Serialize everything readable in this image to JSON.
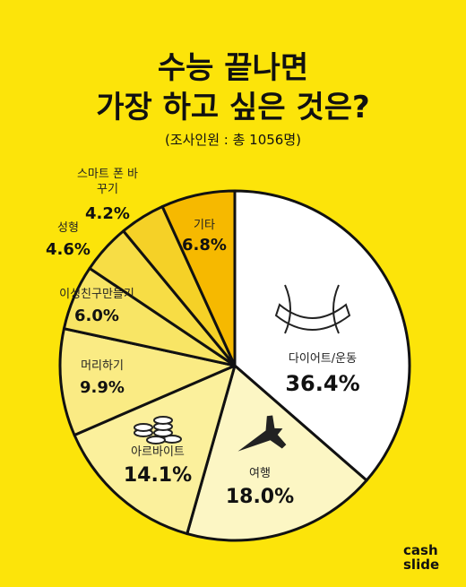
{
  "chart_data": {
    "type": "pie",
    "title": [
      "수능 끝나면",
      "가장 하고 싶은 것은?"
    ],
    "subtitle": "(조사인원 : 총 1056명)",
    "categories": [
      "다이어트/운동",
      "여행",
      "아르바이트",
      "머리하기",
      "이성친구만들기",
      "성형",
      "스마트 폰 바꾸기",
      "기타"
    ],
    "values": [
      36.4,
      18.0,
      14.1,
      9.9,
      6.0,
      4.6,
      4.2,
      6.8
    ],
    "value_labels": [
      "36.4%",
      "18.0%",
      "14.1%",
      "9.9%",
      "6.0%",
      "4.6%",
      "4.2%",
      "6.8%"
    ],
    "colors": [
      "#ffffff",
      "#fcf6c4",
      "#fbf09c",
      "#faeb84",
      "#f8e565",
      "#f7dd45",
      "#f5d127",
      "#f6b900"
    ],
    "logo": [
      "cash",
      "slide"
    ]
  }
}
